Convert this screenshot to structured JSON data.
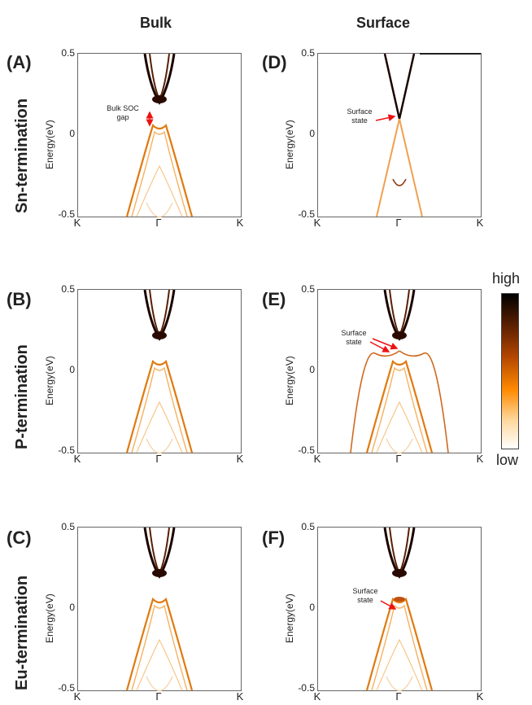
{
  "columns": {
    "bulk": "Bulk",
    "surface": "Surface"
  },
  "rows": {
    "sn": "Sn-termination",
    "p": "P-termination",
    "eu": "Eu-termination"
  },
  "panels": [
    {
      "letter": "(A)",
      "id": "A"
    },
    {
      "letter": "(B)",
      "id": "B"
    },
    {
      "letter": "(C)",
      "id": "C"
    },
    {
      "letter": "(D)",
      "id": "D"
    },
    {
      "letter": "(E)",
      "id": "E"
    },
    {
      "letter": "(F)",
      "id": "F"
    }
  ],
  "axes": {
    "ylabel": "Energy(eV)",
    "yticks": [
      "0.5",
      "0",
      "-0.5"
    ],
    "xticks": [
      "K",
      "Γ",
      "K"
    ],
    "ylim": [
      -0.5,
      0.5
    ]
  },
  "annotations": {
    "bulk_soc_gap": "Bulk SOC gap",
    "surface_state": "Surface state"
  },
  "colorbar": {
    "high": "high",
    "low": "low",
    "colors": [
      "#000000",
      "#b04400",
      "#ff8a00",
      "#ffffff"
    ]
  },
  "chart_data": {
    "type": "heatmap",
    "description_shown": "band-structure spectral density",
    "x_ticks": [
      "K",
      "Γ",
      "K"
    ],
    "y_range": [
      -0.5,
      0.5
    ],
    "y_ticks": [
      0.5,
      0,
      -0.5
    ],
    "colorbar_labels": [
      "high",
      "low"
    ]
  }
}
